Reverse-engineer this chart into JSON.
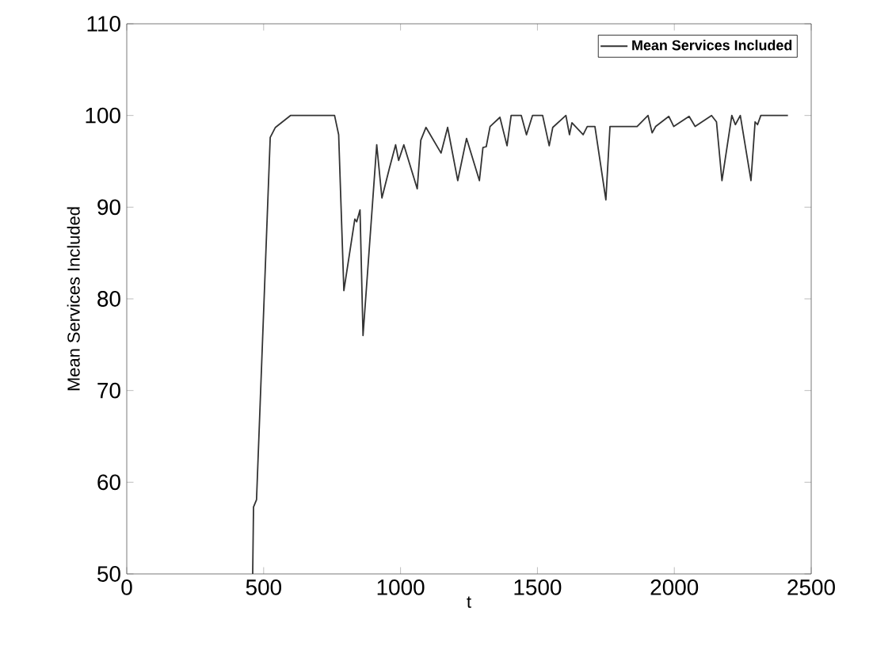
{
  "chart_data": {
    "type": "line",
    "xlabel": "t",
    "ylabel": "Mean Services Included",
    "xlim": [
      0,
      2500
    ],
    "ylim": [
      50,
      110
    ],
    "xticks": [
      0,
      500,
      1000,
      1500,
      2000,
      2500
    ],
    "yticks": [
      50,
      60,
      70,
      80,
      90,
      100,
      110
    ],
    "grid": false,
    "legend": "top right",
    "marker": "none",
    "line_style": "solid",
    "series": [
      {
        "name": "Mean Services Included",
        "color": "#333333",
        "x": [
          460,
          463,
          474,
          524,
          543,
          598,
          759,
          774,
          793,
          833,
          840,
          852,
          863,
          913,
          932,
          959,
          982,
          993,
          1012,
          1061,
          1074,
          1093,
          1148,
          1172,
          1209,
          1241,
          1288,
          1301,
          1313,
          1327,
          1363,
          1389,
          1404,
          1441,
          1460,
          1482,
          1519,
          1543,
          1556,
          1604,
          1617,
          1626,
          1667,
          1682,
          1710,
          1750,
          1765,
          1864,
          1904,
          1919,
          1932,
          1980,
          1998,
          2054,
          2076,
          2136,
          2154,
          2174,
          2210,
          2223,
          2241,
          2280,
          2295,
          2304,
          2316,
          2415
        ],
        "values": [
          50,
          57.3,
          58.1,
          97.6,
          98.7,
          100,
          100,
          97.9,
          80.9,
          88.7,
          88.4,
          89.7,
          76,
          96.8,
          91,
          94.2,
          96.8,
          95.1,
          96.8,
          92,
          97.3,
          98.7,
          95.9,
          98.7,
          92.9,
          97.5,
          92.9,
          96.5,
          96.6,
          98.8,
          99.8,
          96.7,
          100,
          100,
          97.9,
          100,
          100,
          96.7,
          98.7,
          100,
          97.9,
          99.2,
          97.9,
          98.8,
          98.8,
          90.8,
          98.8,
          98.8,
          100,
          98.1,
          98.8,
          99.9,
          98.8,
          99.9,
          98.8,
          100,
          99.3,
          92.9,
          100,
          99,
          100,
          92.9,
          99.3,
          99,
          100,
          100
        ]
      }
    ]
  }
}
